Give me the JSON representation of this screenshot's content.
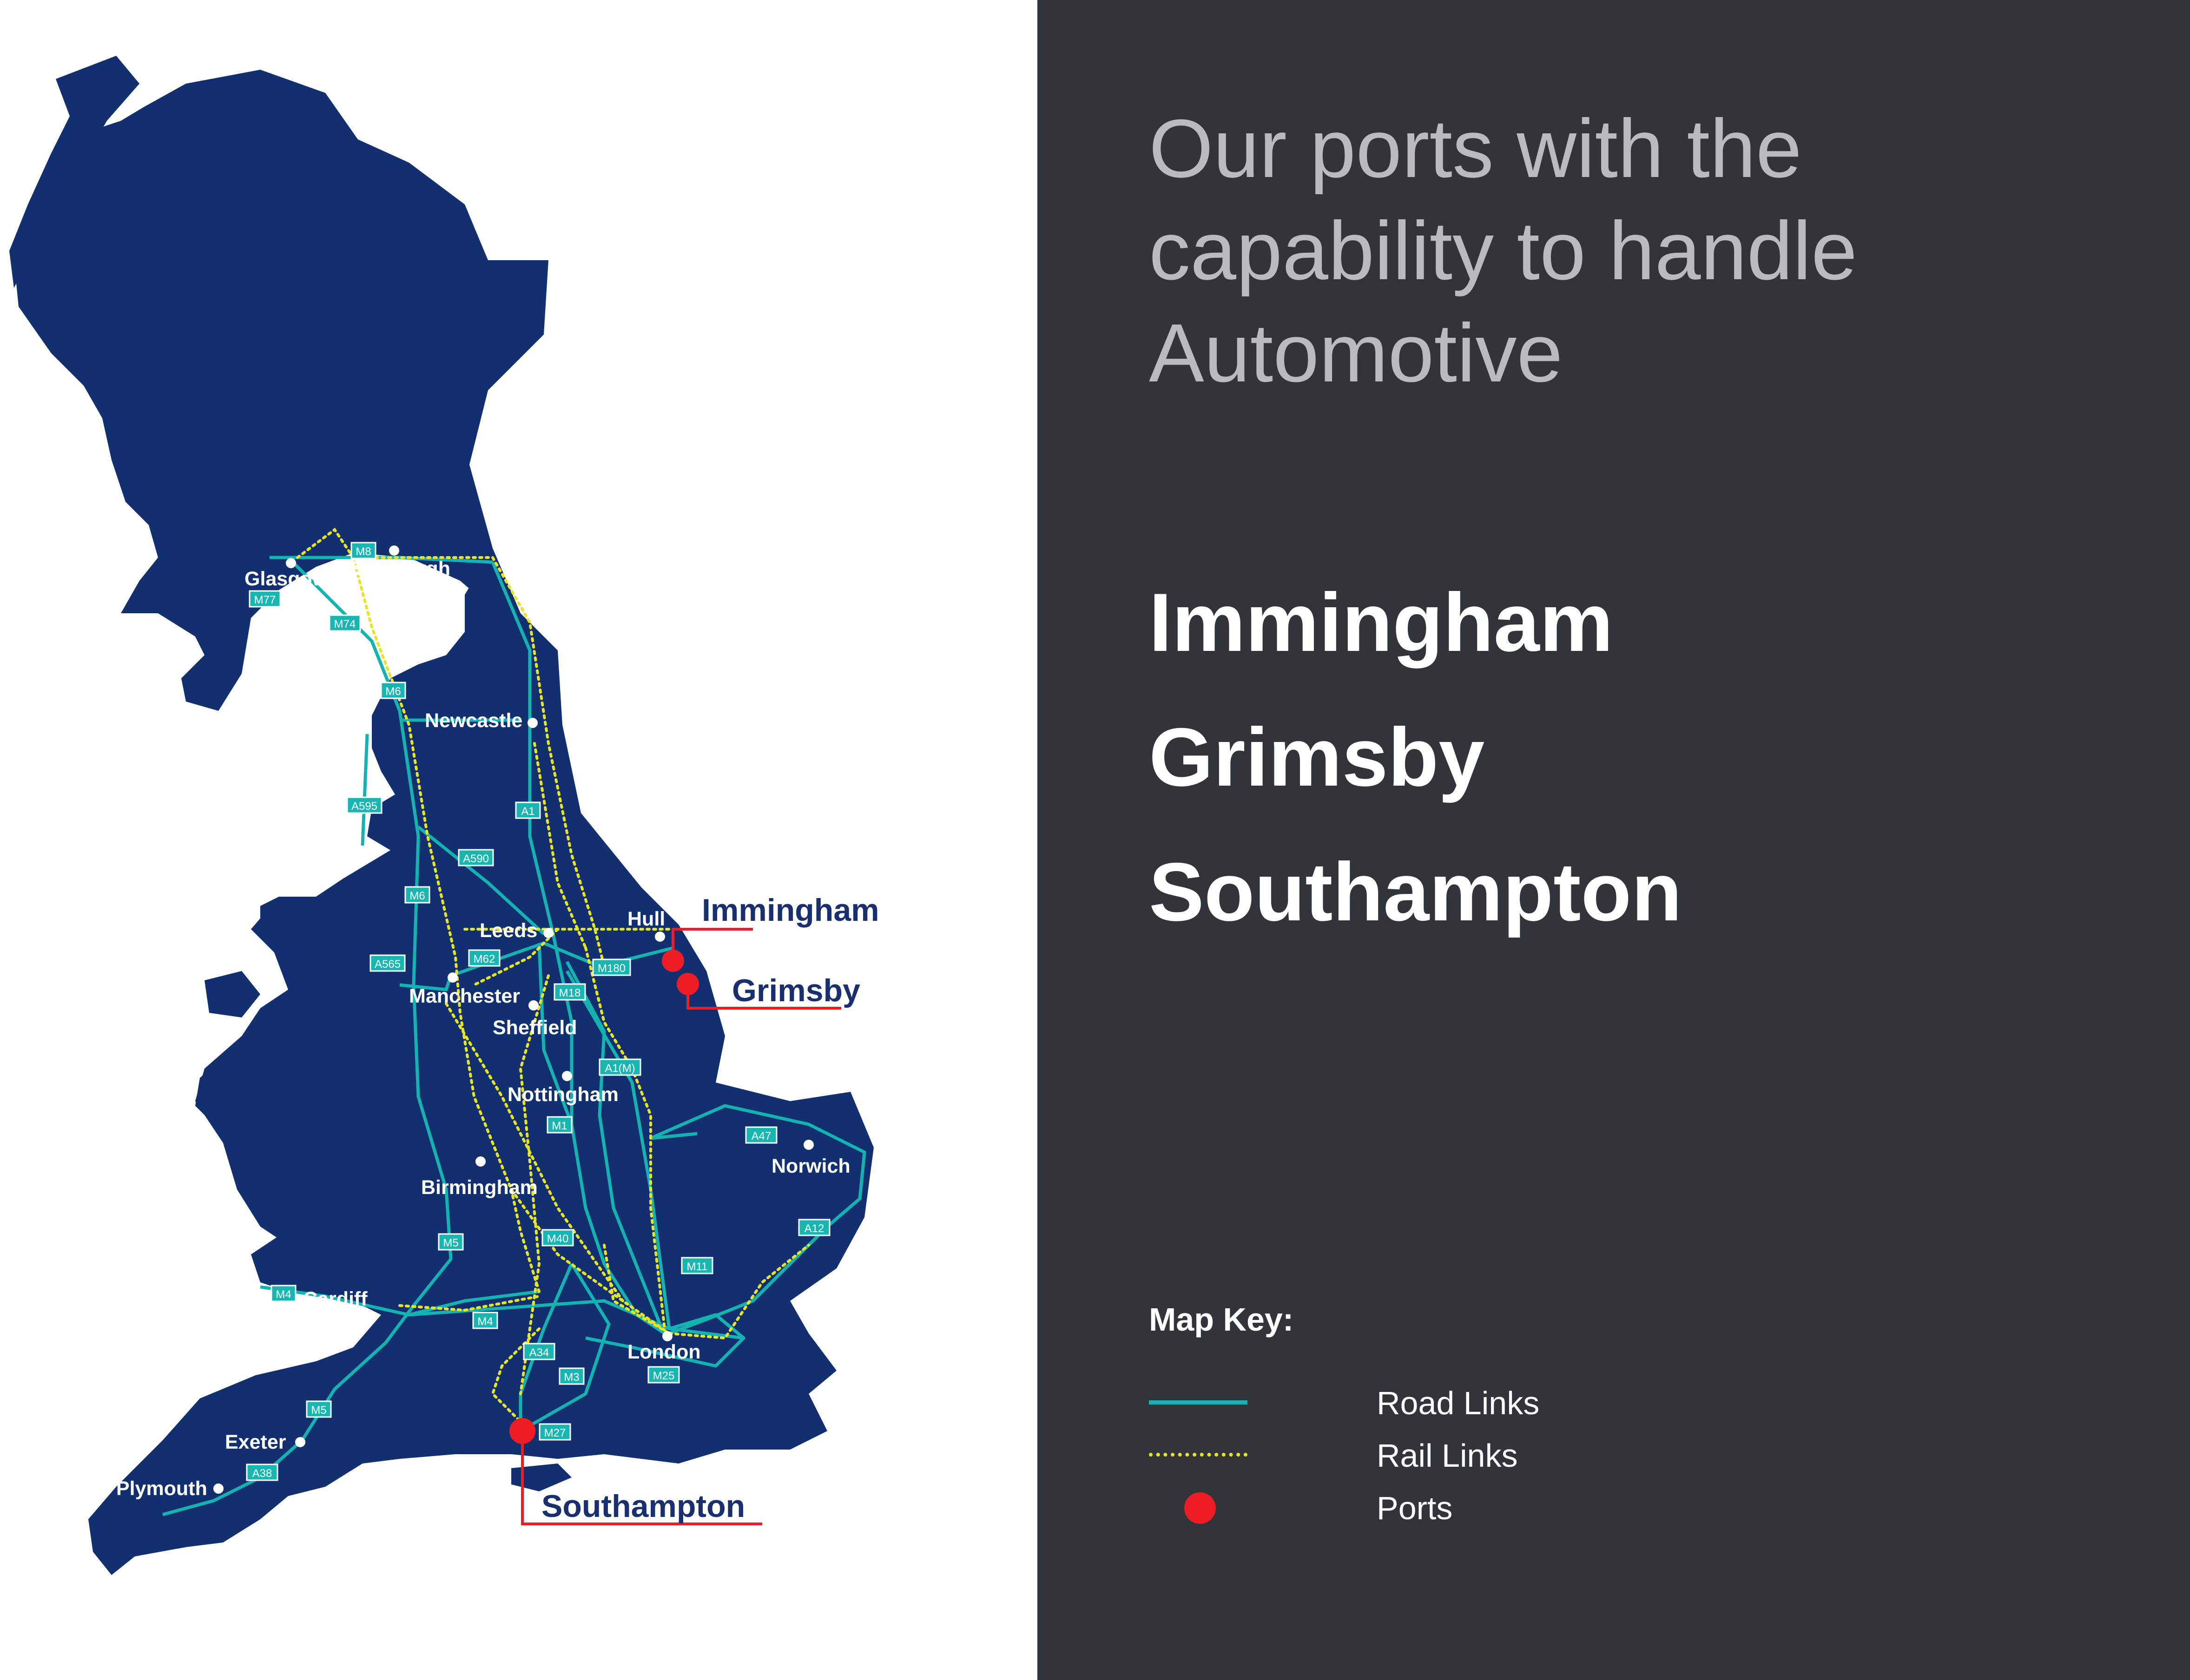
{
  "headline": [
    "Our ports with the",
    "capability to handle",
    "Automotive"
  ],
  "ports_list": [
    "Immingham",
    "Grimsby",
    "Southampton"
  ],
  "map_key": {
    "title": "Map Key:",
    "items": [
      {
        "label": "Road Links",
        "color": "#14b2b0"
      },
      {
        "label": "Rail Links",
        "color": "#e7e426"
      },
      {
        "label": "Ports",
        "color": "#ee1c24"
      }
    ]
  },
  "map": {
    "land_color": "#123070",
    "port_labels": [
      "Immingham",
      "Grimsby",
      "Southampton"
    ],
    "cities": [
      "Glasgow",
      "Edinburgh",
      "Newcastle",
      "Leeds",
      "Hull",
      "Manchester",
      "Sheffield",
      "Nottingham",
      "Norwich",
      "Birmingham",
      "Cardiff",
      "London",
      "Exeter",
      "Plymouth"
    ],
    "roads": [
      "M8",
      "M77",
      "M74",
      "M6",
      "A1",
      "A595",
      "A590",
      "M6",
      "M62",
      "A565",
      "M180",
      "M18",
      "A1(M)",
      "M1",
      "A47",
      "M5",
      "A12",
      "M40",
      "M11",
      "M4",
      "M4",
      "A34",
      "M3",
      "M25",
      "M5",
      "M27",
      "A38"
    ]
  }
}
